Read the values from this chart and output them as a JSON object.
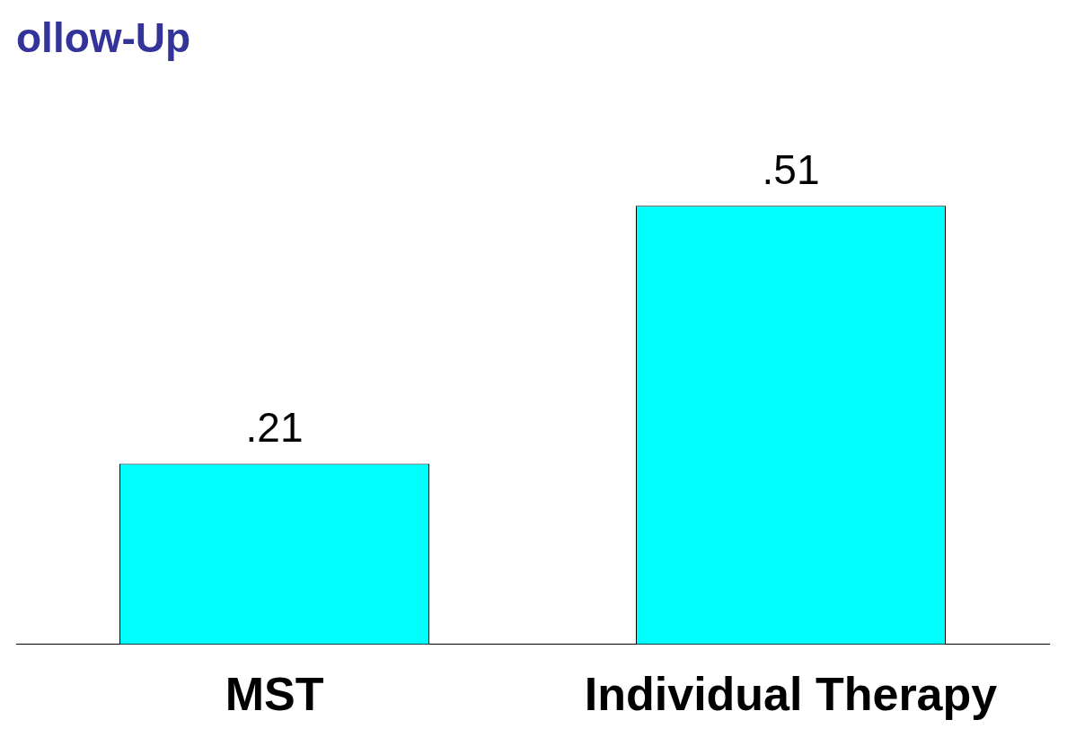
{
  "chart_data": {
    "type": "bar",
    "title": "ollow-Up",
    "categories": [
      "MST",
      "Individual Therapy"
    ],
    "values": [
      0.21,
      0.51
    ],
    "value_labels": [
      ".21",
      ".51"
    ],
    "color": "#00ffff",
    "grid": false,
    "legend": false
  }
}
